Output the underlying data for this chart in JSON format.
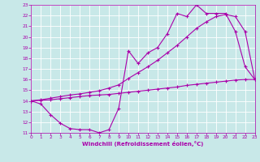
{
  "xlabel": "Windchill (Refroidissement éolien,°C)",
  "bg_color": "#c8e8e8",
  "grid_color": "#b8d8d8",
  "line_color": "#aa00aa",
  "xlim": [
    0,
    23
  ],
  "ylim": [
    11,
    23
  ],
  "xticks": [
    0,
    1,
    2,
    3,
    4,
    5,
    6,
    7,
    8,
    9,
    10,
    11,
    12,
    13,
    14,
    15,
    16,
    17,
    18,
    19,
    20,
    21,
    22,
    23
  ],
  "yticks": [
    11,
    12,
    13,
    14,
    15,
    16,
    17,
    18,
    19,
    20,
    21,
    22,
    23
  ],
  "curve1_x": [
    0,
    1,
    2,
    3,
    4,
    5,
    6,
    7,
    8,
    9,
    10,
    11,
    12,
    13,
    14,
    15,
    16,
    17,
    18,
    19,
    20,
    21,
    22,
    23
  ],
  "curve1_y": [
    14.0,
    13.7,
    12.7,
    11.9,
    11.4,
    11.3,
    11.3,
    11.0,
    11.3,
    13.3,
    18.7,
    17.5,
    18.5,
    19.0,
    20.3,
    22.2,
    21.9,
    23.0,
    22.2,
    22.2,
    22.2,
    20.5,
    17.2,
    16.0
  ],
  "curve2_x": [
    0,
    1,
    2,
    3,
    4,
    5,
    6,
    7,
    8,
    9,
    10,
    11,
    12,
    13,
    14,
    15,
    16,
    17,
    18,
    19,
    20,
    21,
    22,
    23
  ],
  "curve2_y": [
    14.0,
    14.05,
    14.1,
    14.2,
    14.3,
    14.4,
    14.5,
    14.55,
    14.6,
    14.7,
    14.8,
    14.9,
    15.0,
    15.1,
    15.2,
    15.3,
    15.45,
    15.55,
    15.65,
    15.75,
    15.85,
    15.95,
    16.0,
    16.0
  ],
  "curve3_x": [
    0,
    1,
    2,
    3,
    4,
    5,
    6,
    7,
    8,
    9,
    10,
    11,
    12,
    13,
    14,
    15,
    16,
    17,
    18,
    19,
    20,
    21,
    22,
    23
  ],
  "curve3_y": [
    14.0,
    14.1,
    14.25,
    14.4,
    14.55,
    14.65,
    14.8,
    14.95,
    15.2,
    15.5,
    16.1,
    16.65,
    17.2,
    17.8,
    18.5,
    19.2,
    20.0,
    20.8,
    21.4,
    21.9,
    22.1,
    21.9,
    20.5,
    16.0
  ]
}
